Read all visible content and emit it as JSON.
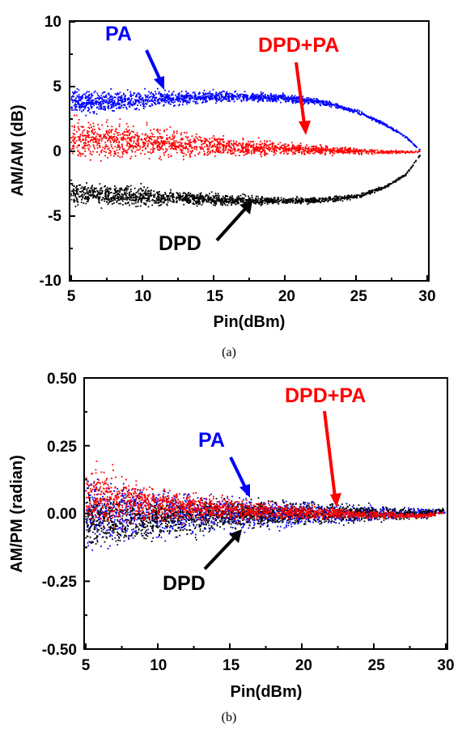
{
  "chart_data": [
    {
      "type": "scatter",
      "caption": "(a)",
      "xlabel": "Pin(dBm)",
      "ylabel": "AM/AM (dB)",
      "xlim": [
        5,
        30
      ],
      "ylim": [
        -10,
        10
      ],
      "xticks": [
        "5",
        "10",
        "15",
        "20",
        "25",
        "30"
      ],
      "yticks": [
        "10",
        "5",
        "0",
        "-5",
        "-10"
      ],
      "series": [
        {
          "name": "PA",
          "color": "#0000ff",
          "x": [
            5,
            7.5,
            10,
            12.5,
            15,
            17.5,
            20,
            22.5,
            25,
            27,
            28.5,
            29.5
          ],
          "y": [
            3.8,
            3.9,
            4.0,
            4.1,
            4.2,
            4.2,
            4.1,
            3.8,
            3.1,
            2.1,
            1.1,
            0.1
          ],
          "spread_db": [
            0.9,
            0.75,
            0.6,
            0.5,
            0.4,
            0.32,
            0.26,
            0.2,
            0.15,
            0.1,
            0.06,
            0.04
          ]
        },
        {
          "name": "DPD+PA",
          "color": "#ff0000",
          "x": [
            5,
            7.5,
            10,
            12.5,
            15,
            17.5,
            20,
            22.5,
            25,
            27,
            28.5,
            29.5
          ],
          "y": [
            1.0,
            0.85,
            0.7,
            0.55,
            0.4,
            0.3,
            0.2,
            0.1,
            0.0,
            -0.05,
            -0.05,
            0.0
          ],
          "spread_db": [
            1.6,
            1.35,
            1.1,
            0.9,
            0.7,
            0.55,
            0.42,
            0.32,
            0.22,
            0.15,
            0.1,
            0.06
          ]
        },
        {
          "name": "DPD",
          "color": "#000000",
          "x": [
            5,
            7.5,
            10,
            12.5,
            15,
            17.5,
            20,
            22.5,
            25,
            27,
            28.5,
            29.5
          ],
          "y": [
            -3.3,
            -3.4,
            -3.5,
            -3.6,
            -3.7,
            -3.8,
            -3.8,
            -3.8,
            -3.5,
            -2.8,
            -1.8,
            -0.3
          ],
          "spread_db": [
            1.0,
            0.8,
            0.65,
            0.5,
            0.4,
            0.32,
            0.26,
            0.2,
            0.15,
            0.1,
            0.07,
            0.04
          ]
        }
      ],
      "annotations": [
        {
          "text": "PA",
          "color": "#0000ff"
        },
        {
          "text": "DPD+PA",
          "color": "#ff0000"
        },
        {
          "text": "DPD",
          "color": "#000000"
        }
      ]
    },
    {
      "type": "scatter",
      "caption": "(b)",
      "xlabel": "Pin(dBm)",
      "ylabel": "AM/PM (radian)",
      "xlim": [
        5,
        30
      ],
      "ylim": [
        -0.5,
        0.5
      ],
      "xticks": [
        "5",
        "10",
        "15",
        "20",
        "25",
        "30"
      ],
      "yticks": [
        "0.50",
        "0.25",
        "0.00",
        "-0.25",
        "-0.50"
      ],
      "series": [
        {
          "name": "PA",
          "color": "#0000ff",
          "x": [
            5,
            7.5,
            10,
            12.5,
            15,
            17.5,
            20,
            22.5,
            25,
            27,
            28.5,
            30
          ],
          "y": [
            0.0,
            0.0,
            0.0,
            0.0,
            0.0,
            0.0,
            0.0,
            0.0,
            0.0,
            0.0,
            0.0,
            0.01
          ],
          "spread": [
            0.12,
            0.1,
            0.08,
            0.065,
            0.055,
            0.047,
            0.04,
            0.034,
            0.027,
            0.02,
            0.015,
            0.01
          ]
        },
        {
          "name": "DPD",
          "color": "#000000",
          "x": [
            5,
            7.5,
            10,
            12.5,
            15,
            17.5,
            20,
            22.5,
            25,
            27,
            28.5,
            30
          ],
          "y": [
            -0.02,
            -0.02,
            -0.015,
            -0.01,
            -0.005,
            0.0,
            0.0,
            0.0,
            0.0,
            0.0,
            0.0,
            0.01
          ],
          "spread": [
            0.1,
            0.085,
            0.07,
            0.058,
            0.048,
            0.042,
            0.037,
            0.033,
            0.028,
            0.022,
            0.016,
            0.01
          ]
        },
        {
          "name": "DPD+PA",
          "color": "#ff0000",
          "x": [
            5,
            7.5,
            10,
            12.5,
            15,
            17.5,
            20,
            22.5,
            25,
            27,
            28.5,
            30
          ],
          "y": [
            0.06,
            0.05,
            0.035,
            0.025,
            0.015,
            0.008,
            0.003,
            0.0,
            -0.005,
            -0.008,
            -0.008,
            0.005
          ],
          "spread": [
            0.1,
            0.08,
            0.06,
            0.045,
            0.035,
            0.027,
            0.021,
            0.016,
            0.012,
            0.009,
            0.007,
            0.005
          ]
        }
      ],
      "annotations": [
        {
          "text": "PA",
          "color": "#0000ff"
        },
        {
          "text": "DPD+PA",
          "color": "#ff0000"
        },
        {
          "text": "DPD",
          "color": "#000000"
        }
      ]
    }
  ]
}
